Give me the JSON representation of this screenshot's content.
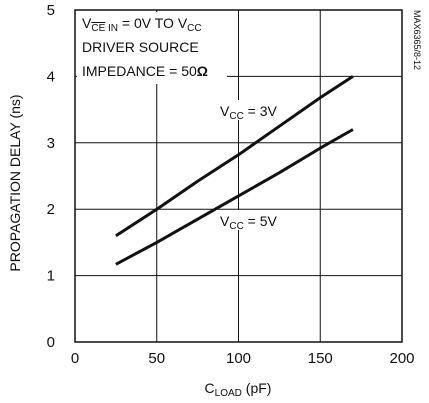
{
  "chart_data": {
    "type": "line",
    "xlabel": {
      "main": "C",
      "sub": "LOAD",
      "unit": " (pF)"
    },
    "ylabel": "PROPAGATION DELAY (ns)",
    "xlim": [
      0,
      200
    ],
    "ylim": [
      0,
      5
    ],
    "xticks": [
      "0",
      "50",
      "100",
      "150",
      "200"
    ],
    "yticks": [
      "0",
      "1",
      "2",
      "3",
      "4",
      "5"
    ],
    "grid": true,
    "figure_id": "MAX6365/8-12",
    "conditions": {
      "line1": {
        "v": "V",
        "ce": "CE",
        "in": " IN",
        "rest": " = 0V TO V",
        "cc": "CC"
      },
      "line2": "DRIVER SOURCE",
      "line3": {
        "text": "IMPEDANCE = 50",
        "omega": "Ω"
      }
    },
    "series": [
      {
        "name": {
          "v": "V",
          "sub": "CC",
          "rest": " = 3V"
        },
        "x": [
          25,
          50,
          75,
          100,
          125,
          150,
          170
        ],
        "y": [
          1.6,
          2.0,
          2.42,
          2.82,
          3.25,
          3.68,
          4.0
        ]
      },
      {
        "name": {
          "v": "V",
          "sub": "CC",
          "rest": " = 5V"
        },
        "x": [
          25,
          50,
          75,
          100,
          125,
          150,
          170
        ],
        "y": [
          1.17,
          1.5,
          1.85,
          2.2,
          2.55,
          2.92,
          3.2
        ]
      }
    ]
  }
}
